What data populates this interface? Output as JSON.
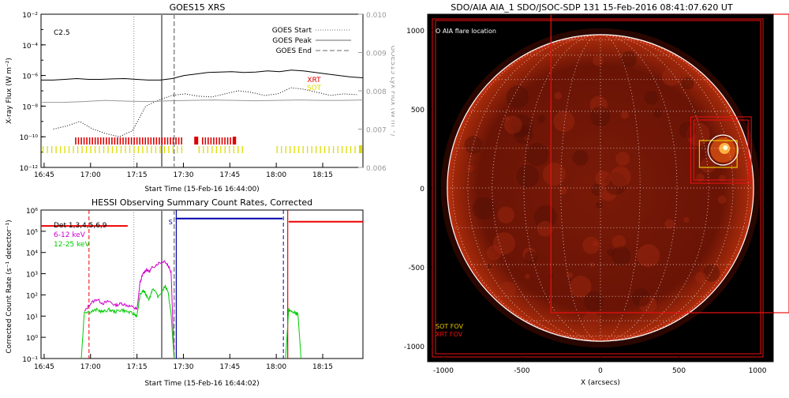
{
  "chart_data": [
    {
      "type": "line",
      "title": "GOES15 XRS",
      "xlabel": "Start Time (15-Feb-16 16:44:00)",
      "ylabel": "X-ray Flux (W m⁻²)",
      "y2label": "GOES15 Lyx Flux (W m⁻²)",
      "x_ticks": [
        "16:45",
        "17:00",
        "17:15",
        "17:30",
        "17:45",
        "18:00",
        "18:15"
      ],
      "xlim_minutes": [
        0,
        104
      ],
      "ylog": true,
      "ylim": [
        1e-12,
        0.01
      ],
      "y_ticks": [
        "10⁻²",
        "10⁻⁴",
        "10⁻⁶",
        "10⁻⁸",
        "10⁻¹⁰",
        "10⁻¹²"
      ],
      "y2lim": [
        0.006,
        0.01
      ],
      "y2_ticks": [
        "0.010",
        "0.009",
        "0.008",
        "0.007",
        "0.006"
      ],
      "flare_class": "C2.5",
      "legend": [
        {
          "label": "GOES Start",
          "style": "dotted"
        },
        {
          "label": "GOES Peak",
          "style": "solid"
        },
        {
          "label": "GOES End",
          "style": "dashed"
        }
      ],
      "instrument_labels": [
        {
          "label": "XRT",
          "color": "#dd0000"
        },
        {
          "label": "SOT",
          "color": "#dddd00"
        }
      ],
      "event_lines_minutes": {
        "start": 30,
        "peak": 39,
        "end": 43
      },
      "series": [
        {
          "name": "long",
          "color": "#000000",
          "log_values": [
            -6.3,
            -6.3,
            -6.25,
            -6.2,
            -6.25,
            -6.25,
            -6.22,
            -6.2,
            -6.25,
            -6.3,
            -6.3,
            -6.2,
            -6.0,
            -5.9,
            -5.8,
            -5.78,
            -5.75,
            -5.8,
            -5.78,
            -5.7,
            -5.75,
            -5.65,
            -5.7,
            -5.8,
            -5.9,
            -6.0,
            -6.1,
            -6.15
          ]
        },
        {
          "name": "short",
          "color": "#000000",
          "log_values": [
            -9.5,
            -9.3,
            -9.0,
            -9.5,
            -9.8,
            -10.0,
            -9.6,
            -8.0,
            -7.6,
            -7.3,
            -7.2,
            -7.35,
            -7.4,
            -7.2,
            -7.0,
            -7.1,
            -7.3,
            -7.2,
            -6.8,
            -6.9,
            -7.1,
            -7.3,
            -7.2,
            -7.25
          ]
        },
        {
          "name": "lya",
          "color": "#999999",
          "values": [
            0.0077,
            0.0077,
            0.00772,
            0.00775,
            0.00773,
            0.00772,
            0.00774,
            0.00775,
            0.00776,
            0.00775,
            0.00774,
            0.00775,
            0.00776,
            0.00775,
            0.00775,
            0.00776
          ]
        }
      ]
    },
    {
      "type": "line",
      "title": "HESSI Observing Summary Count Rates, Corrected",
      "xlabel": "Start Time (15-Feb-16 16:44:02)",
      "ylabel": "Corrected Count Rate (s⁻¹ detector⁻¹)",
      "x_ticks": [
        "16:45",
        "17:00",
        "17:15",
        "17:30",
        "17:45",
        "18:00",
        "18:15"
      ],
      "xlim_minutes": [
        0,
        104
      ],
      "ylog": true,
      "ylim": [
        0.1,
        1000000.0
      ],
      "y_ticks": [
        "10⁶",
        "10⁵",
        "10⁴",
        "10³",
        "10²",
        "10¹",
        "10⁰",
        "10⁻¹"
      ],
      "legend": [
        {
          "label": "Det 1,3,4,5,6,9",
          "color": "#000000"
        },
        {
          "label": "6-12 keV",
          "color": "#cc00cc"
        },
        {
          "label": "12-25 keV",
          "color": "#00cc00"
        }
      ],
      "segment_label": "S",
      "annotation_colors": {
        "red": "#ee0000",
        "blue": "#0000aa"
      },
      "series": [
        {
          "name": "6-12 keV",
          "color": "#cc00cc",
          "x": [
            14,
            16,
            18,
            20,
            22,
            24,
            26,
            28,
            30,
            31,
            32,
            33,
            34,
            35,
            36,
            38,
            40,
            41,
            42,
            43
          ],
          "y": [
            1.2,
            1.6,
            1.8,
            1.6,
            1.7,
            1.5,
            1.6,
            1.5,
            1.4,
            1.3,
            2.6,
            3.0,
            3.2,
            3.1,
            3.3,
            3.5,
            3.6,
            3.4,
            3.1,
            -1
          ]
        },
        {
          "name": "12-25 keV",
          "color": "#00cc00",
          "x": [
            13,
            14,
            16,
            18,
            20,
            22,
            24,
            26,
            28,
            30,
            31,
            32,
            33,
            34,
            35,
            36,
            38,
            40,
            41,
            42,
            43
          ],
          "y": [
            -1,
            1.2,
            1.2,
            1.3,
            1.2,
            1.3,
            1.2,
            1.3,
            1.2,
            1.1,
            1.0,
            2.0,
            2.2,
            2.0,
            1.8,
            2.3,
            1.9,
            2.4,
            2.2,
            1.1,
            -1
          ]
        },
        {
          "name": "12-25 keV late",
          "color": "#00cc00",
          "x": [
            79,
            80,
            81,
            82,
            83,
            84
          ],
          "y": [
            -1,
            1.3,
            1.2,
            1.15,
            1.1,
            -1
          ]
        }
      ]
    },
    {
      "type": "scatter",
      "title": "SDO/AIA AIA_1 SDO/JSOC-SDP 131 15-Feb-2016 08:41:07.620 UT",
      "xlabel": "X (arcsecs)",
      "ylabel": "",
      "xlim": [
        -1100,
        1100
      ],
      "ylim": [
        -1100,
        1100
      ],
      "x_ticks": [
        "-1000",
        "-500",
        "0",
        "500",
        "1000"
      ],
      "y_ticks": [
        "1000",
        "500",
        "0",
        "-500",
        "-1000"
      ],
      "annotations": {
        "flare_location": "O AIA flare location",
        "sot_fov": "SOT FOV",
        "xrt_fov": "XRT FOV"
      },
      "flare_location": {
        "x": 780,
        "y": 240
      }
    }
  ]
}
